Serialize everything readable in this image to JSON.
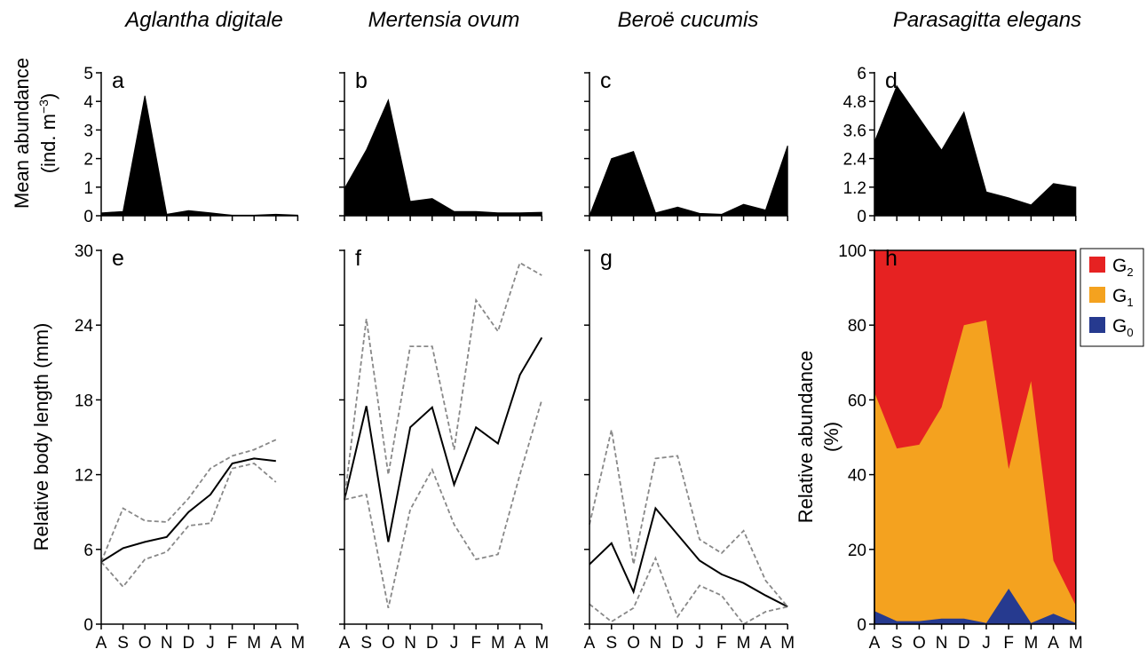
{
  "months": [
    "A",
    "S",
    "O",
    "N",
    "D",
    "J",
    "F",
    "M",
    "A",
    "M"
  ],
  "species": [
    "Aglantha digitale",
    "Mertensia ovum",
    "Beroë cucumis",
    "Parasagitta elegans"
  ],
  "top_ylabel": [
    "Mean abundance",
    "(ind. m",
    "−3",
    ")"
  ],
  "bottom_ylabel": "Relative body length (mm)",
  "h_ylabel": [
    "Relative abundance",
    "(%)"
  ],
  "colors": {
    "G2": "#e62222",
    "G1": "#f4a21f",
    "G0": "#263a8f",
    "dashed": "#888888"
  },
  "chart_data": [
    {
      "panel": "a",
      "type": "area",
      "species": "Aglantha digitale",
      "ylim": [
        0,
        5
      ],
      "yticks": [
        "0",
        "1",
        "2",
        "3",
        "4",
        "5"
      ],
      "values": [
        0.1,
        0.15,
        4.2,
        0.05,
        0.18,
        0.1,
        0.02,
        0.02,
        0.05,
        0.02
      ]
    },
    {
      "panel": "b",
      "type": "area",
      "species": "Mertensia ovum",
      "ylim": [
        0,
        5
      ],
      "yticks": [
        "",
        "",
        "",
        "",
        "",
        ""
      ],
      "values": [
        0.95,
        2.3,
        4.05,
        0.5,
        0.6,
        0.15,
        0.15,
        0.1,
        0.1,
        0.12
      ]
    },
    {
      "panel": "c",
      "type": "area",
      "species": "Beroë cucumis",
      "ylim": [
        0,
        5
      ],
      "yticks": [
        "",
        "",
        "",
        "",
        "",
        ""
      ],
      "values": [
        0,
        2.0,
        2.25,
        0.1,
        0.3,
        0.08,
        0.05,
        0.4,
        0.2,
        2.45
      ]
    },
    {
      "panel": "d",
      "type": "area",
      "species": "Parasagitta elegans",
      "ylim": [
        0,
        6
      ],
      "yticks": [
        "0",
        "1.2",
        "2.4",
        "3.6",
        "4.8",
        "6"
      ],
      "values": [
        3.1,
        5.45,
        4.1,
        2.75,
        4.35,
        1.0,
        0.75,
        0.45,
        1.35,
        1.2
      ]
    },
    {
      "panel": "e",
      "type": "line",
      "ylim": [
        0,
        30
      ],
      "yticks": [
        "0",
        "6",
        "12",
        "18",
        "24",
        "30"
      ],
      "series": [
        {
          "role": "mean",
          "values": [
            5.0,
            6.1,
            6.6,
            7.0,
            9.0,
            10.4,
            12.9,
            13.3,
            13.1,
            null
          ]
        },
        {
          "role": "upper",
          "values": [
            5.0,
            9.3,
            8.3,
            8.2,
            10.1,
            12.5,
            13.5,
            14.0,
            14.8,
            null
          ]
        },
        {
          "role": "lower",
          "values": [
            5.0,
            3.0,
            5.2,
            5.8,
            7.9,
            8.1,
            12.5,
            12.9,
            11.4,
            null
          ]
        }
      ]
    },
    {
      "panel": "f",
      "type": "line",
      "ylim": [
        0,
        30
      ],
      "yticks": [
        "",
        "",
        "",
        "",
        "",
        ""
      ],
      "series": [
        {
          "role": "mean",
          "values": [
            10.0,
            17.5,
            6.6,
            15.8,
            17.4,
            11.2,
            15.8,
            14.5,
            20.0,
            23.0
          ]
        },
        {
          "role": "upper",
          "values": [
            10.0,
            24.5,
            12.0,
            22.3,
            22.3,
            14.0,
            26.0,
            23.5,
            29.0,
            28.0
          ]
        },
        {
          "role": "lower",
          "values": [
            10.0,
            10.4,
            1.3,
            9.2,
            12.4,
            8.0,
            5.2,
            5.6,
            12.0,
            18.0
          ]
        }
      ]
    },
    {
      "panel": "g",
      "type": "line",
      "ylim": [
        0,
        30
      ],
      "yticks": [
        "",
        "",
        "",
        "",
        "",
        ""
      ],
      "series": [
        {
          "role": "mean",
          "values": [
            4.8,
            6.5,
            2.6,
            9.3,
            7.2,
            5.1,
            4.0,
            3.3,
            2.3,
            1.4
          ]
        },
        {
          "role": "upper",
          "values": [
            8.0,
            15.6,
            4.8,
            13.3,
            13.5,
            6.8,
            5.7,
            7.5,
            3.5,
            1.4
          ]
        },
        {
          "role": "lower",
          "values": [
            1.6,
            0.2,
            1.3,
            5.3,
            0.6,
            3.1,
            2.3,
            0.0,
            1.0,
            1.4
          ]
        }
      ]
    },
    {
      "panel": "h",
      "type": "area",
      "stacked": true,
      "ylim": [
        0,
        100
      ],
      "yticks": [
        "0",
        "20",
        "40",
        "60",
        "80",
        "100"
      ],
      "legend": [
        {
          "key": "G2",
          "base": "G",
          "sub": "2"
        },
        {
          "key": "G1",
          "base": "G",
          "sub": "1"
        },
        {
          "key": "G0",
          "base": "G",
          "sub": "0"
        }
      ],
      "series": [
        {
          "name": "G0",
          "values": [
            3.5,
            0.8,
            0.8,
            1.5,
            1.5,
            0.3,
            9.5,
            0.3,
            2.8,
            0.3
          ]
        },
        {
          "name": "G1",
          "values": [
            58.5,
            46.2,
            47.2,
            56.5,
            78.5,
            81.0,
            32.0,
            64.7,
            14.2,
            4.7
          ]
        },
        {
          "name": "G2",
          "values": [
            38.0,
            53.0,
            52.0,
            42.0,
            20.0,
            18.7,
            58.5,
            35.0,
            83.0,
            95.0
          ]
        }
      ]
    }
  ]
}
